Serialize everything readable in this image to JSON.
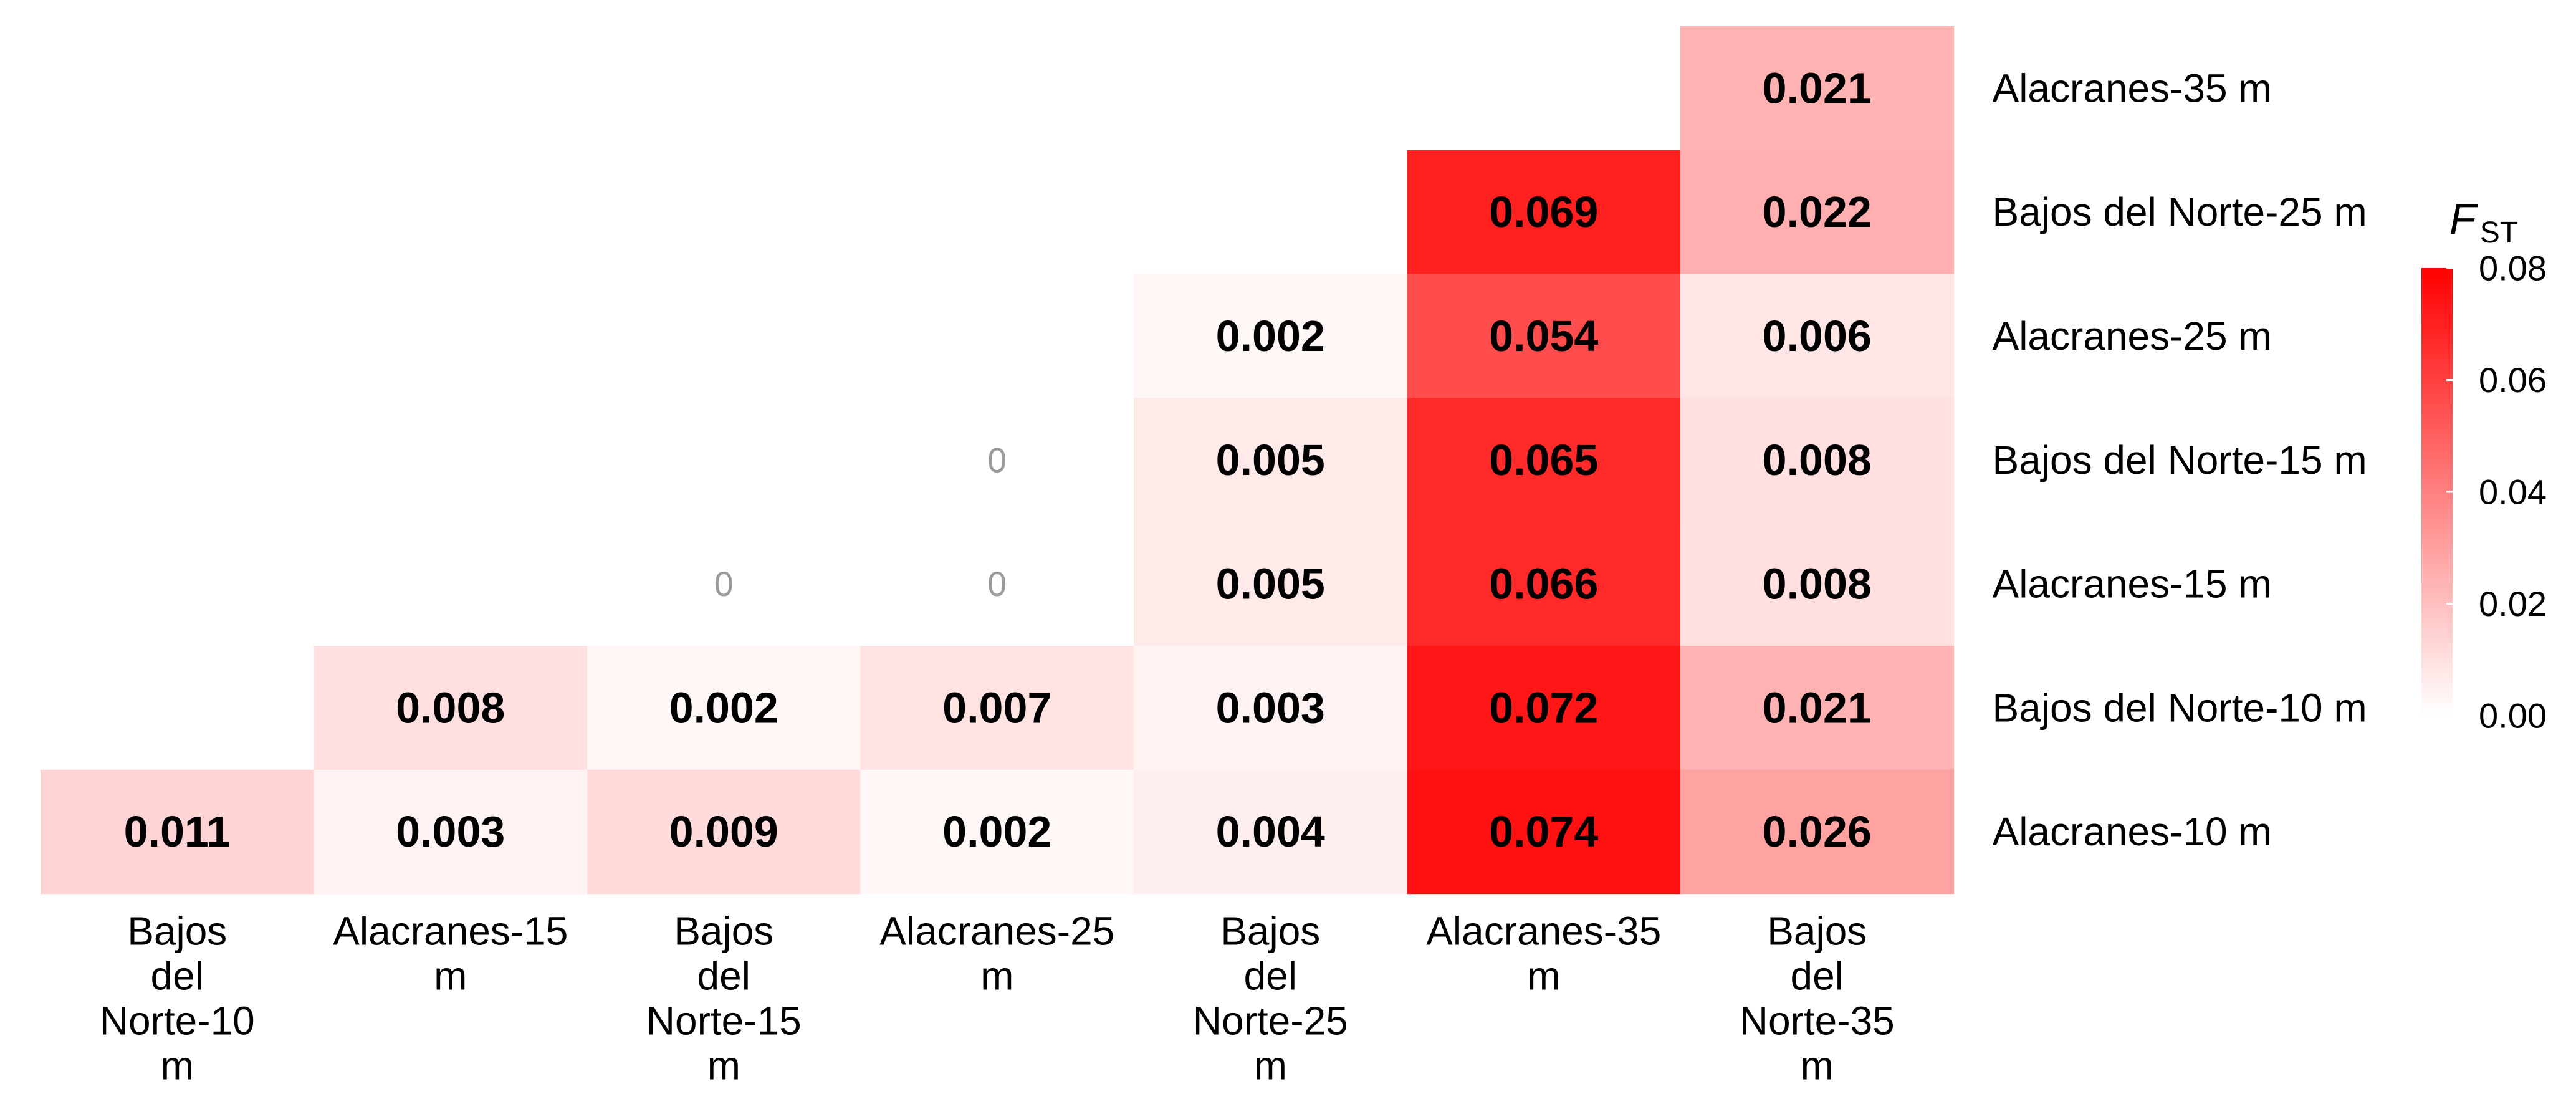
{
  "chart_data": {
    "type": "heatmap",
    "title": "",
    "columns": [
      "Bajos del Norte-10 m",
      "Alacranes-15 m",
      "Bajos del Norte-15 m",
      "Alacranes-25 m",
      "Bajos del Norte-25 m",
      "Alacranes-35 m",
      "Bajos del Norte-35 m"
    ],
    "column_label_lines": [
      [
        "Bajos",
        "del",
        "Norte-10",
        "m"
      ],
      [
        "Alacranes-15",
        "m"
      ],
      [
        "Bajos",
        "del",
        "Norte-15",
        "m"
      ],
      [
        "Alacranes-25",
        "m"
      ],
      [
        "Bajos",
        "del",
        "Norte-25",
        "m"
      ],
      [
        "Alacranes-35",
        "m"
      ],
      [
        "Bajos",
        "del",
        "Norte-35",
        "m"
      ]
    ],
    "rows": [
      "Alacranes-35 m",
      "Bajos del Norte-25 m",
      "Alacranes-25 m",
      "Bajos del Norte-15 m",
      "Alacranes-15 m",
      "Bajos del Norte-10 m",
      "Alacranes-10 m"
    ],
    "values": [
      [
        null,
        null,
        null,
        null,
        null,
        null,
        0.021
      ],
      [
        null,
        null,
        null,
        null,
        null,
        0.069,
        0.022
      ],
      [
        null,
        null,
        null,
        null,
        0.002,
        0.054,
        0.006
      ],
      [
        null,
        null,
        null,
        0,
        0.005,
        0.065,
        0.008
      ],
      [
        null,
        null,
        0,
        0,
        0.005,
        0.066,
        0.008
      ],
      [
        null,
        0.008,
        0.002,
        0.007,
        0.003,
        0.072,
        0.021
      ],
      [
        0.011,
        0.003,
        0.009,
        0.002,
        0.004,
        0.074,
        0.026
      ]
    ],
    "labels": [
      [
        null,
        null,
        null,
        null,
        null,
        null,
        "0.021"
      ],
      [
        null,
        null,
        null,
        null,
        null,
        "0.069",
        "0.022"
      ],
      [
        null,
        null,
        null,
        null,
        "0.002",
        "0.054",
        "0.006"
      ],
      [
        null,
        null,
        null,
        "0",
        "0.005",
        "0.065",
        "0.008"
      ],
      [
        null,
        null,
        "0",
        "0",
        "0.005",
        "0.066",
        "0.008"
      ],
      [
        null,
        "0.008",
        "0.002",
        "0.007",
        "0.003",
        "0.072",
        "0.021"
      ],
      [
        "0.011",
        "0.003",
        "0.009",
        "0.002",
        "0.004",
        "0.074",
        "0.026"
      ]
    ],
    "color_scale": {
      "low_color": "#ffffff",
      "high_color": "#ff0000",
      "min": 0,
      "max": 0.08
    },
    "legend": {
      "title": "F",
      "title_subscript": "ST",
      "ticks": [
        "0.00",
        "0.02",
        "0.04",
        "0.06",
        "0.08"
      ],
      "tick_values": [
        0,
        0.02,
        0.04,
        0.06,
        0.08
      ],
      "placement": "right"
    }
  }
}
